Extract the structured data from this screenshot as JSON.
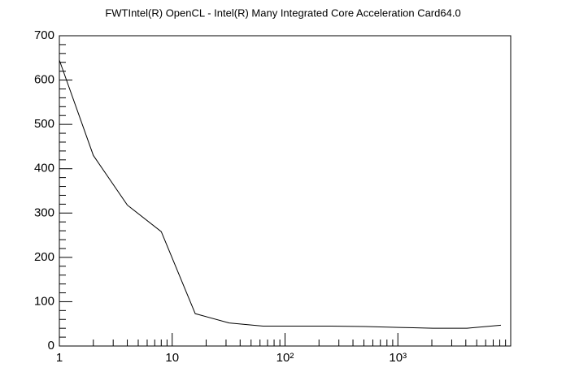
{
  "chart_data": {
    "type": "line",
    "title": "FWTIntel(R) OpenCL - Intel(R) Many Integrated Core Acceleration Card64.0",
    "x": [
      1,
      2,
      4,
      8,
      16,
      32,
      64,
      128,
      256,
      512,
      1024,
      2048,
      4096,
      8192
    ],
    "series": [
      {
        "color": "#000000",
        "values": [
          645,
          430,
          318,
          258,
          73,
          52,
          45,
          45,
          45,
          44,
          42,
          40,
          40,
          47
        ]
      }
    ],
    "xlog": true,
    "xlim": [
      1,
      10000
    ],
    "xticks": [
      1,
      10,
      {
        "value": 100,
        "label": "10²"
      },
      {
        "value": 1000,
        "label": "10³"
      }
    ],
    "ylim": [
      0,
      700
    ],
    "yticks": [
      0,
      100,
      200,
      300,
      400,
      500,
      600,
      700
    ]
  }
}
